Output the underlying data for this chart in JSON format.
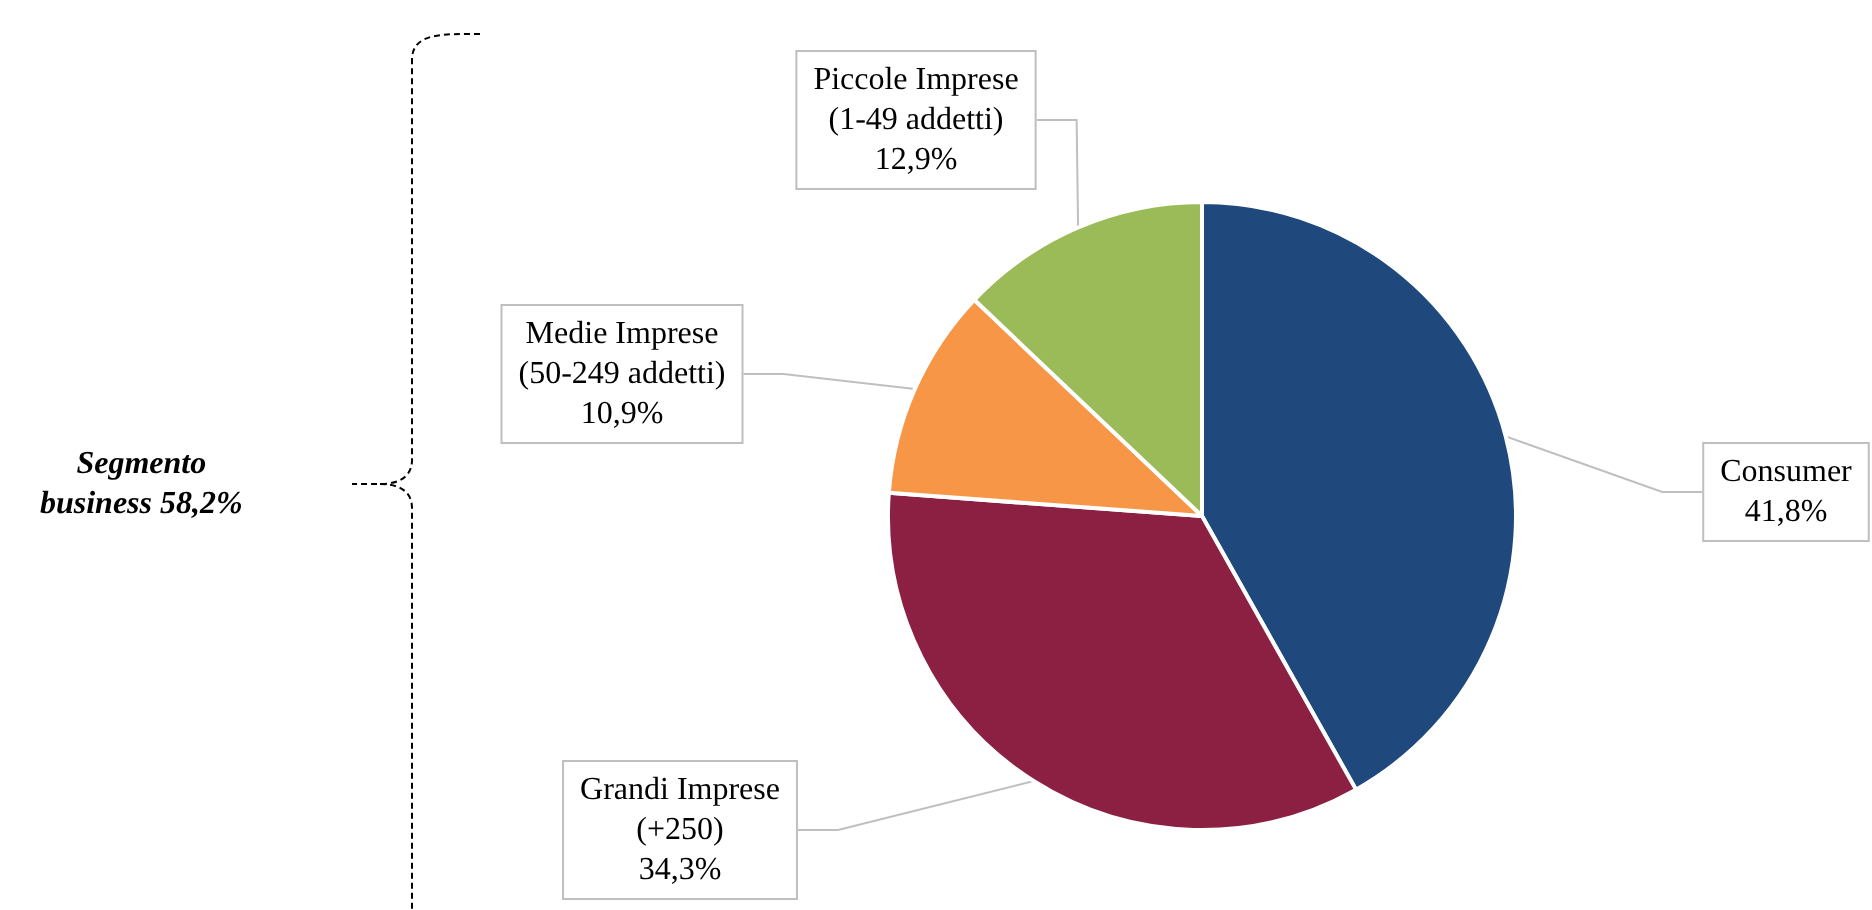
{
  "chart_data": {
    "type": "pie",
    "categories": [
      "Consumer",
      "Grandi Imprese\n(+250)",
      "Medie Imprese\n(50-249 addetti)",
      "Piccole Imprese\n(1-49 addetti)"
    ],
    "values": [
      41.8,
      34.3,
      10.9,
      12.9
    ],
    "colors": [
      "#1f497d",
      "#8b2042",
      "#f79646",
      "#9bbb59"
    ],
    "value_labels": [
      "41,8%",
      "34,3%",
      "10,9%",
      "12,9%"
    ],
    "annotations": [
      "Segmento\nbusiness 58,2%"
    ],
    "legend": false
  }
}
